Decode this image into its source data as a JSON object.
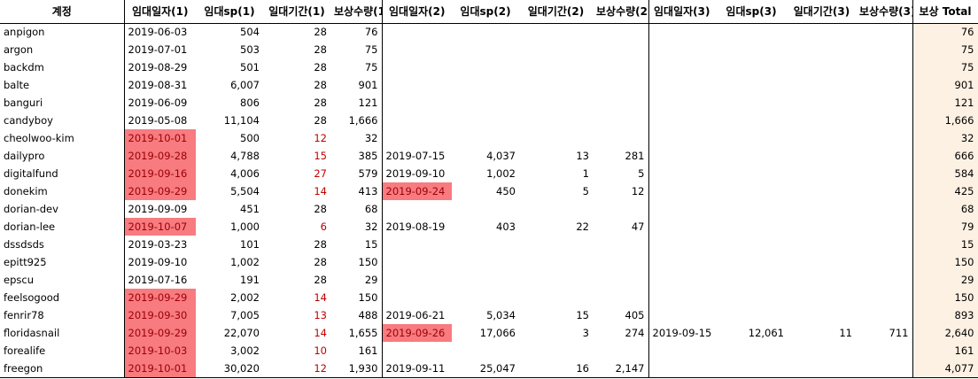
{
  "headers": [
    "계정",
    "임대일자(1)",
    "임대sp(1)",
    "일대기간(1)",
    "보상수량(1)",
    "임대일자(2)",
    "임대sp(2)",
    "일대기간(2)",
    "보상수량(2)",
    "임대일자(3)",
    "임대sp(3)",
    "일대기간(3)",
    "보상수량(3)",
    "보상 Total"
  ],
  "rows": [
    {
      "account": "anpigon",
      "d1": "2019-06-03",
      "sp1": "504",
      "p1": "28",
      "r1": "76",
      "d2": "",
      "sp2": "",
      "p2": "",
      "r2": "",
      "d3": "",
      "sp3": "",
      "p3": "",
      "r3": "",
      "total": "76",
      "hl1": false,
      "red1": false,
      "hl2": false
    },
    {
      "account": "argon",
      "d1": "2019-07-01",
      "sp1": "503",
      "p1": "28",
      "r1": "75",
      "d2": "",
      "sp2": "",
      "p2": "",
      "r2": "",
      "d3": "",
      "sp3": "",
      "p3": "",
      "r3": "",
      "total": "75",
      "hl1": false,
      "red1": false,
      "hl2": false
    },
    {
      "account": "backdm",
      "d1": "2019-08-29",
      "sp1": "501",
      "p1": "28",
      "r1": "75",
      "d2": "",
      "sp2": "",
      "p2": "",
      "r2": "",
      "d3": "",
      "sp3": "",
      "p3": "",
      "r3": "",
      "total": "75",
      "hl1": false,
      "red1": false,
      "hl2": false
    },
    {
      "account": "balte",
      "d1": "2019-08-31",
      "sp1": "6,007",
      "p1": "28",
      "r1": "901",
      "d2": "",
      "sp2": "",
      "p2": "",
      "r2": "",
      "d3": "",
      "sp3": "",
      "p3": "",
      "r3": "",
      "total": "901",
      "hl1": false,
      "red1": false,
      "hl2": false
    },
    {
      "account": "banguri",
      "d1": "2019-06-09",
      "sp1": "806",
      "p1": "28",
      "r1": "121",
      "d2": "",
      "sp2": "",
      "p2": "",
      "r2": "",
      "d3": "",
      "sp3": "",
      "p3": "",
      "r3": "",
      "total": "121",
      "hl1": false,
      "red1": false,
      "hl2": false
    },
    {
      "account": "candyboy",
      "d1": "2019-05-08",
      "sp1": "11,104",
      "p1": "28",
      "r1": "1,666",
      "d2": "",
      "sp2": "",
      "p2": "",
      "r2": "",
      "d3": "",
      "sp3": "",
      "p3": "",
      "r3": "",
      "total": "1,666",
      "hl1": false,
      "red1": false,
      "hl2": false
    },
    {
      "account": "cheolwoo-kim",
      "d1": "2019-10-01",
      "sp1": "500",
      "p1": "12",
      "r1": "32",
      "d2": "",
      "sp2": "",
      "p2": "",
      "r2": "",
      "d3": "",
      "sp3": "",
      "p3": "",
      "r3": "",
      "total": "32",
      "hl1": true,
      "red1": true,
      "hl2": false
    },
    {
      "account": "dailypro",
      "d1": "2019-09-28",
      "sp1": "4,788",
      "p1": "15",
      "r1": "385",
      "d2": "2019-07-15",
      "sp2": "4,037",
      "p2": "13",
      "r2": "281",
      "d3": "",
      "sp3": "",
      "p3": "",
      "r3": "",
      "total": "666",
      "hl1": true,
      "red1": true,
      "hl2": false
    },
    {
      "account": "digitalfund",
      "d1": "2019-09-16",
      "sp1": "4,006",
      "p1": "27",
      "r1": "579",
      "d2": "2019-09-10",
      "sp2": "1,002",
      "p2": "1",
      "r2": "5",
      "d3": "",
      "sp3": "",
      "p3": "",
      "r3": "",
      "total": "584",
      "hl1": true,
      "red1": true,
      "hl2": false
    },
    {
      "account": "donekim",
      "d1": "2019-09-29",
      "sp1": "5,504",
      "p1": "14",
      "r1": "413",
      "d2": "2019-09-24",
      "sp2": "450",
      "p2": "5",
      "r2": "12",
      "d3": "",
      "sp3": "",
      "p3": "",
      "r3": "",
      "total": "425",
      "hl1": true,
      "red1": true,
      "hl2": true
    },
    {
      "account": "dorian-dev",
      "d1": "2019-09-09",
      "sp1": "451",
      "p1": "28",
      "r1": "68",
      "d2": "",
      "sp2": "",
      "p2": "",
      "r2": "",
      "d3": "",
      "sp3": "",
      "p3": "",
      "r3": "",
      "total": "68",
      "hl1": false,
      "red1": false,
      "hl2": false
    },
    {
      "account": "dorian-lee",
      "d1": "2019-10-07",
      "sp1": "1,000",
      "p1": "6",
      "r1": "32",
      "d2": "2019-08-19",
      "sp2": "403",
      "p2": "22",
      "r2": "47",
      "d3": "",
      "sp3": "",
      "p3": "",
      "r3": "",
      "total": "79",
      "hl1": true,
      "red1": true,
      "hl2": false
    },
    {
      "account": "dssdsds",
      "d1": "2019-03-23",
      "sp1": "101",
      "p1": "28",
      "r1": "15",
      "d2": "",
      "sp2": "",
      "p2": "",
      "r2": "",
      "d3": "",
      "sp3": "",
      "p3": "",
      "r3": "",
      "total": "15",
      "hl1": false,
      "red1": false,
      "hl2": false
    },
    {
      "account": "epitt925",
      "d1": "2019-09-10",
      "sp1": "1,002",
      "p1": "28",
      "r1": "150",
      "d2": "",
      "sp2": "",
      "p2": "",
      "r2": "",
      "d3": "",
      "sp3": "",
      "p3": "",
      "r3": "",
      "total": "150",
      "hl1": false,
      "red1": false,
      "hl2": false
    },
    {
      "account": "epscu",
      "d1": "2019-07-16",
      "sp1": "191",
      "p1": "28",
      "r1": "29",
      "d2": "",
      "sp2": "",
      "p2": "",
      "r2": "",
      "d3": "",
      "sp3": "",
      "p3": "",
      "r3": "",
      "total": "29",
      "hl1": false,
      "red1": false,
      "hl2": false
    },
    {
      "account": "feelsogood",
      "d1": "2019-09-29",
      "sp1": "2,002",
      "p1": "14",
      "r1": "150",
      "d2": "",
      "sp2": "",
      "p2": "",
      "r2": "",
      "d3": "",
      "sp3": "",
      "p3": "",
      "r3": "",
      "total": "150",
      "hl1": true,
      "red1": true,
      "hl2": false
    },
    {
      "account": "fenrir78",
      "d1": "2019-09-30",
      "sp1": "7,005",
      "p1": "13",
      "r1": "488",
      "d2": "2019-06-21",
      "sp2": "5,034",
      "p2": "15",
      "r2": "405",
      "d3": "",
      "sp3": "",
      "p3": "",
      "r3": "",
      "total": "893",
      "hl1": true,
      "red1": true,
      "hl2": false
    },
    {
      "account": "floridasnail",
      "d1": "2019-09-29",
      "sp1": "22,070",
      "p1": "14",
      "r1": "1,655",
      "d2": "2019-09-26",
      "sp2": "17,066",
      "p2": "3",
      "r2": "274",
      "d3": "2019-09-15",
      "sp3": "12,061",
      "p3": "11",
      "r3": "711",
      "total": "2,640",
      "hl1": true,
      "red1": true,
      "hl2": true
    },
    {
      "account": "forealife",
      "d1": "2019-10-03",
      "sp1": "3,002",
      "p1": "10",
      "r1": "161",
      "d2": "",
      "sp2": "",
      "p2": "",
      "r2": "",
      "d3": "",
      "sp3": "",
      "p3": "",
      "r3": "",
      "total": "161",
      "hl1": true,
      "red1": true,
      "hl2": false
    },
    {
      "account": "freegon",
      "d1": "2019-10-01",
      "sp1": "30,020",
      "p1": "12",
      "r1": "1,930",
      "d2": "2019-09-11",
      "sp2": "25,047",
      "p2": "16",
      "r2": "2,147",
      "d3": "",
      "sp3": "",
      "p3": "",
      "r3": "",
      "total": "4,077",
      "hl1": true,
      "red1": true,
      "hl2": false
    }
  ]
}
